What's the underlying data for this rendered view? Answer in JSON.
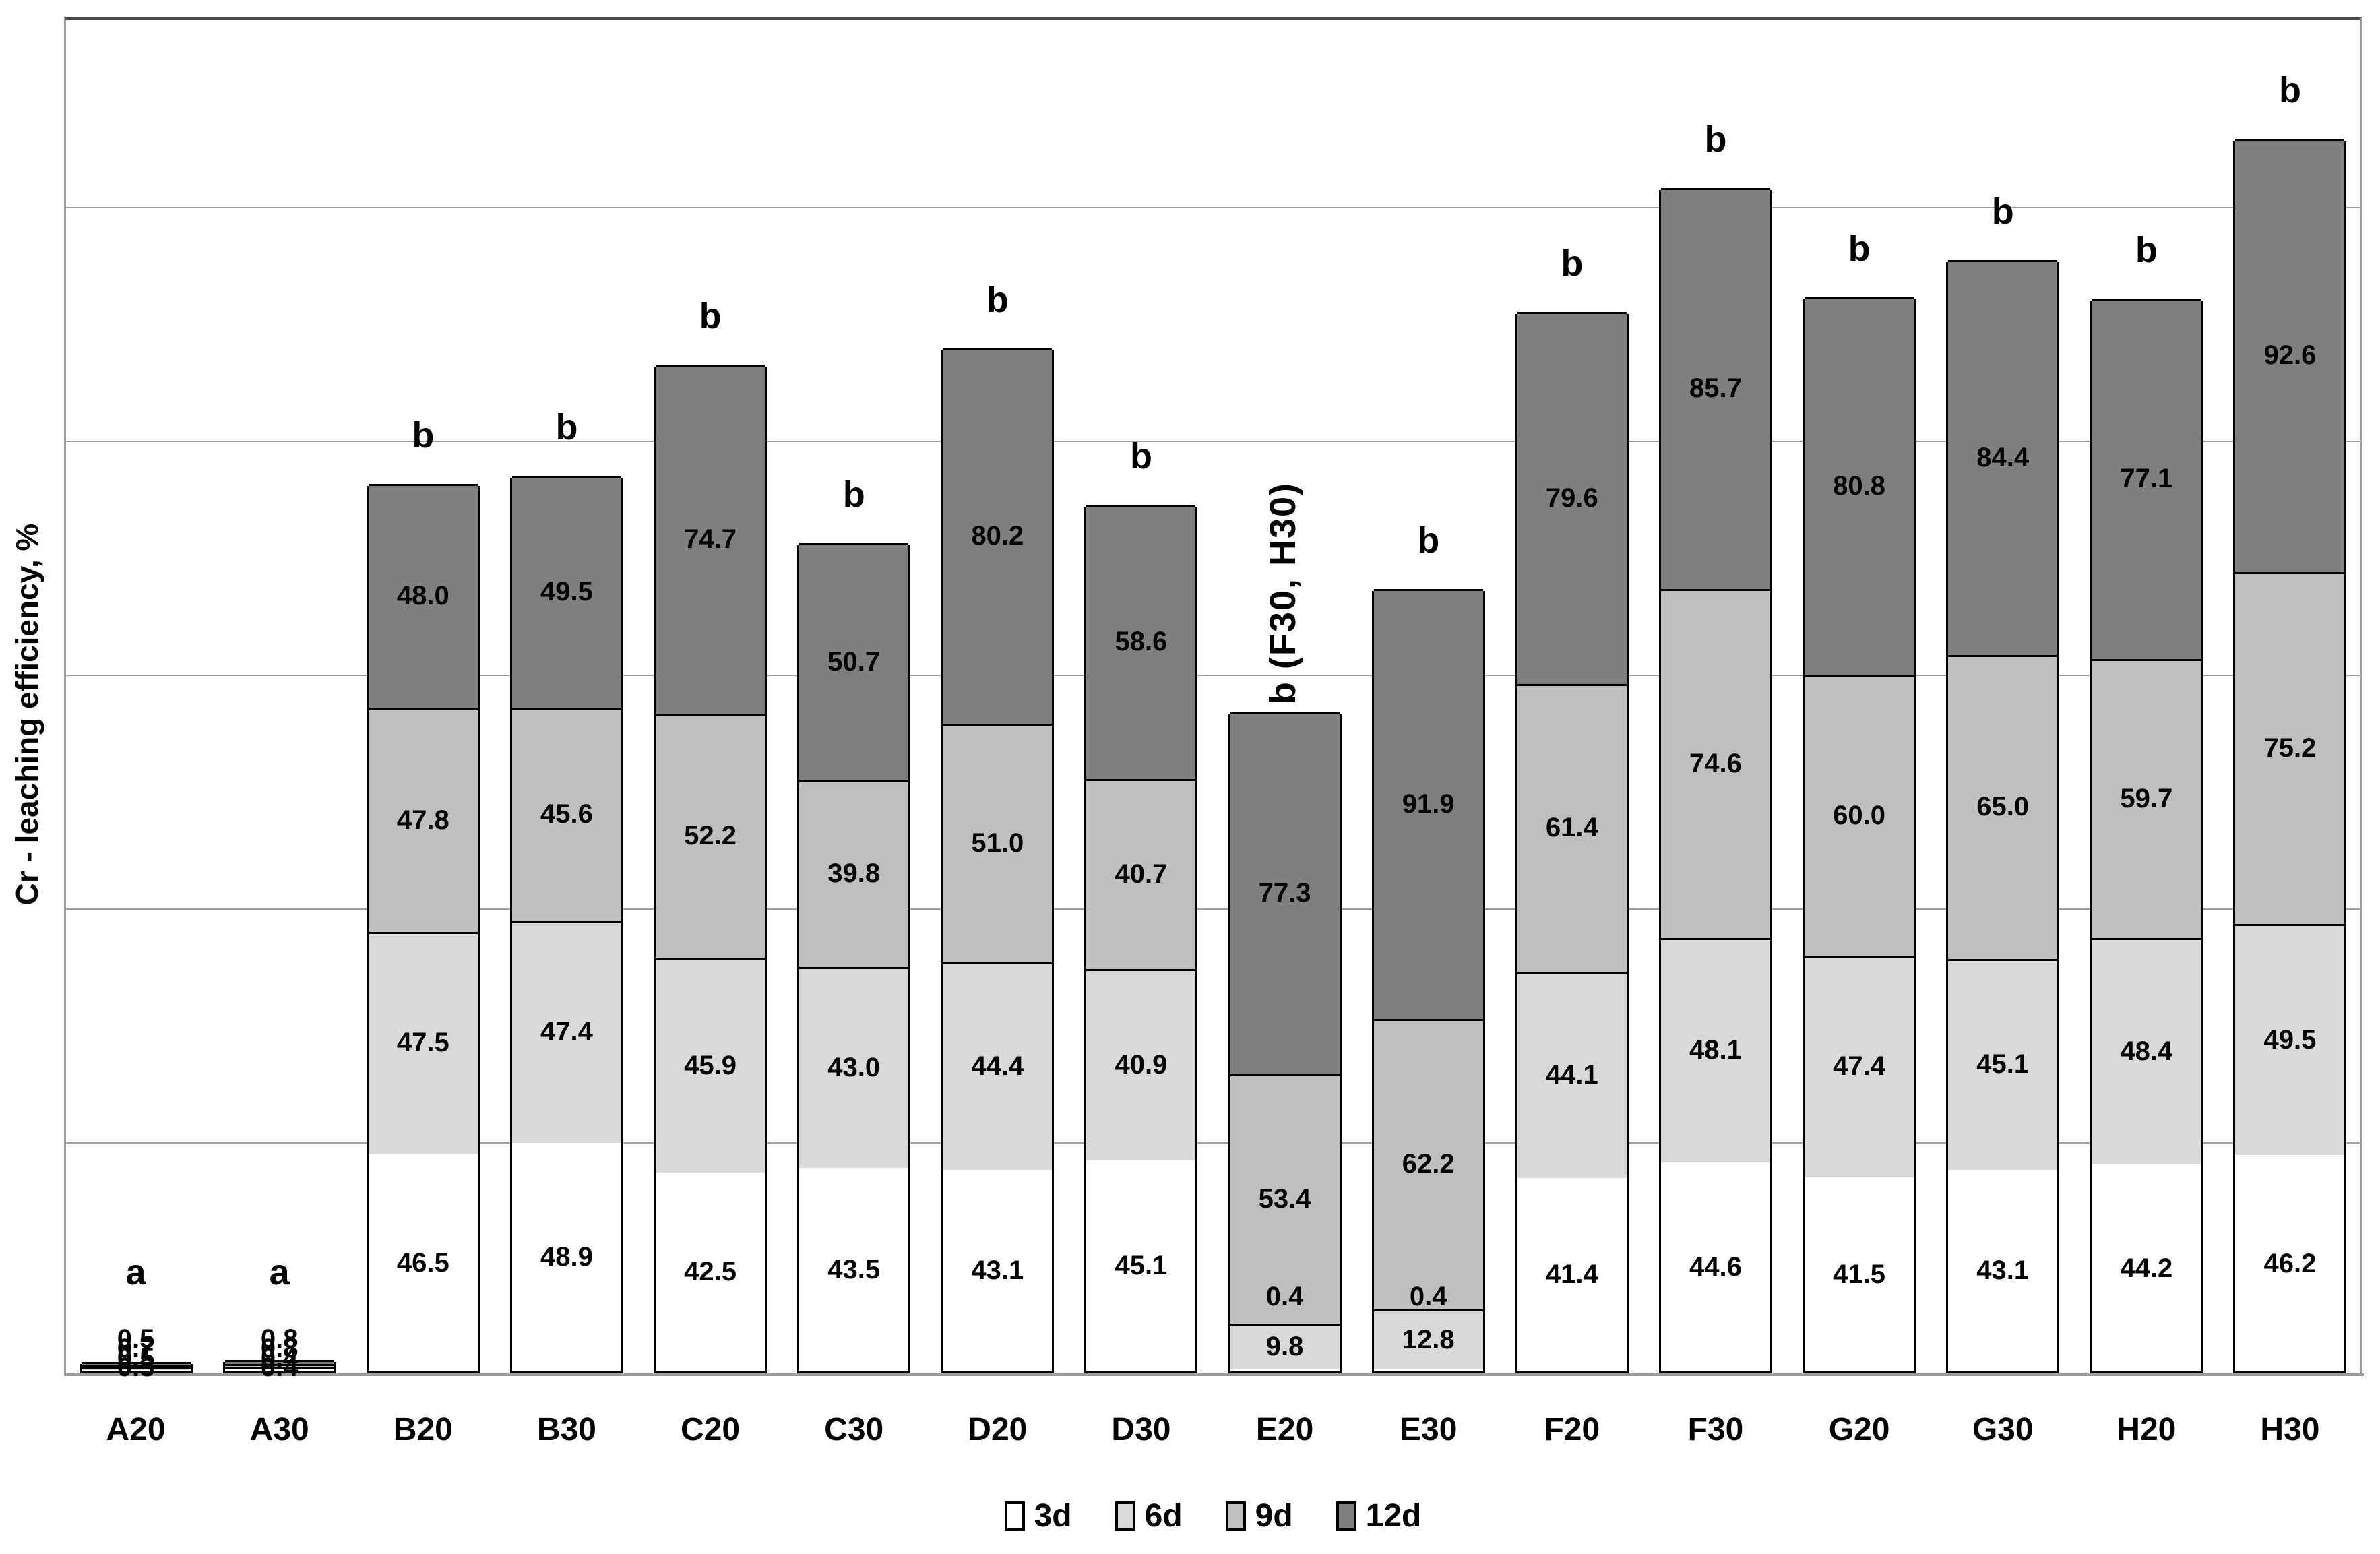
{
  "chart_data": {
    "type": "bar",
    "stacked": true,
    "title": "",
    "xlabel": "",
    "ylabel": "Cr - leaching efficiency, %",
    "ylim": [
      0,
      290
    ],
    "gridline_step": 50,
    "grid": true,
    "y_tick_labels_visible": false,
    "legend_position": "bottom",
    "categories": [
      "A20",
      "A30",
      "B20",
      "B30",
      "C20",
      "C30",
      "D20",
      "D30",
      "E20",
      "E30",
      "F20",
      "F30",
      "G20",
      "G30",
      "H20",
      "H30"
    ],
    "series": [
      {
        "name": "3d",
        "color": "#ffffff",
        "values": [
          0.3,
          0.4,
          46.5,
          48.9,
          42.5,
          43.5,
          43.1,
          45.1,
          0.4,
          0.4,
          41.4,
          44.6,
          41.5,
          43.1,
          44.2,
          46.2
        ]
      },
      {
        "name": "6d",
        "color": "#d9d9d9",
        "values": [
          0.5,
          0.4,
          47.5,
          47.4,
          45.9,
          43.0,
          44.4,
          40.9,
          9.8,
          12.8,
          44.1,
          48.1,
          47.4,
          45.1,
          48.4,
          49.5
        ]
      },
      {
        "name": "9d",
        "color": "#bfbfbf",
        "values": [
          0.7,
          0.8,
          47.8,
          45.6,
          52.2,
          39.8,
          51.0,
          40.7,
          53.4,
          62.2,
          61.4,
          74.6,
          60.0,
          65.0,
          59.7,
          75.2
        ]
      },
      {
        "name": "12d",
        "color": "#7f7f7f",
        "values": [
          0.5,
          0.8,
          48.0,
          49.5,
          74.7,
          50.7,
          80.2,
          58.6,
          77.3,
          91.9,
          79.6,
          85.7,
          80.8,
          84.4,
          77.1,
          92.6
        ]
      }
    ],
    "annotations": [
      "a",
      "a",
      "b",
      "b",
      "b",
      "b",
      "b",
      "b",
      "b (F30, H30)",
      "b",
      "b",
      "b",
      "b",
      "b",
      "b",
      "b"
    ],
    "colors": {
      "bar_border": "#000000",
      "gridline": "#9e9e9e",
      "axis_line": "#9e9e9e",
      "plot_top_border": "#4a4a4a",
      "label_text": "#000000"
    }
  }
}
